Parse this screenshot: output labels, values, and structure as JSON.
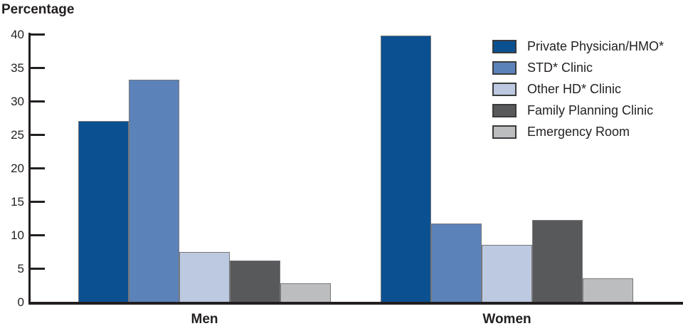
{
  "chart_data": {
    "type": "bar",
    "title": "Percentage",
    "ylabel": "Percentage",
    "xlabel": "",
    "categories": [
      "Men",
      "Women"
    ],
    "series": [
      {
        "name": "Private Physician/HMO*",
        "color": "#0b5191",
        "values": [
          27.0,
          39.8
        ]
      },
      {
        "name": "STD* Clinic",
        "color": "#5c82ba",
        "values": [
          33.2,
          11.7
        ]
      },
      {
        "name": "Other HD* Clinic",
        "color": "#bcc9e0",
        "values": [
          7.4,
          8.5
        ]
      },
      {
        "name": "Family Planning Clinic",
        "color": "#58595b",
        "values": [
          6.2,
          12.2
        ]
      },
      {
        "name": "Emergency Room",
        "color": "#bbbdbf",
        "values": [
          2.8,
          3.5
        ]
      }
    ],
    "yticks": [
      0,
      5,
      10,
      15,
      20,
      25,
      30,
      35,
      40
    ],
    "ylim": [
      0,
      40
    ],
    "grid": false,
    "legend_position": "top-right",
    "colors": {
      "ink": "#231f20",
      "bar_border": "#77787b",
      "background": "#ffffff"
    }
  }
}
